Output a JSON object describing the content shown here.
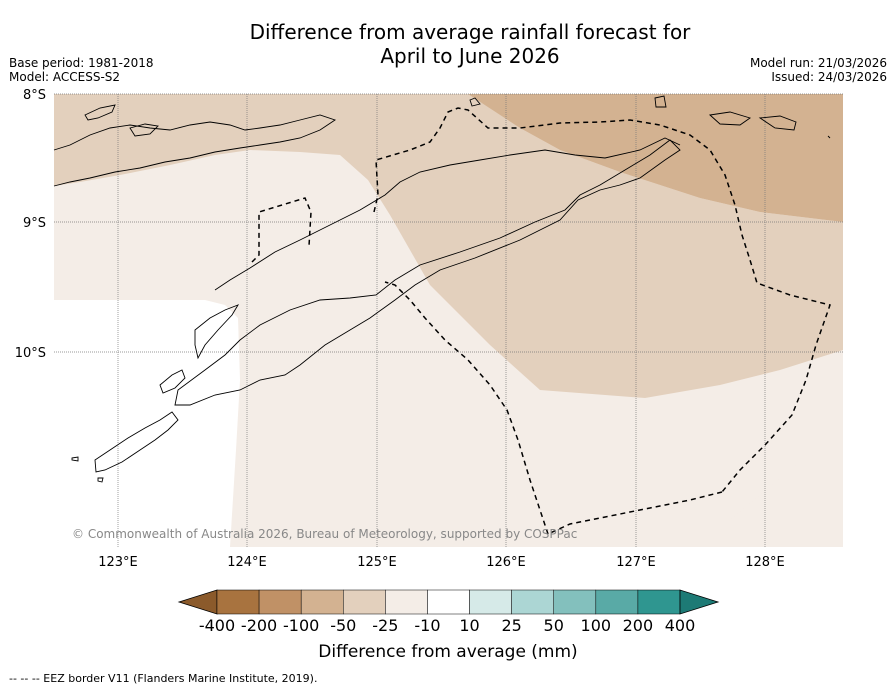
{
  "title": {
    "line1": "Difference from average rainfall forecast for",
    "line2": "April to June 2026"
  },
  "meta_left": {
    "base_period": "Base period: 1981-2018",
    "model": "Model: ACCESS-S2"
  },
  "meta_right": {
    "model_run": "Model run: 21/03/2026",
    "issued": "Issued: 24/03/2026"
  },
  "map": {
    "latitude_labels": [
      "8°S",
      "9°S",
      "10°S"
    ],
    "longitude_labels": [
      "123°E",
      "124°E",
      "125°E",
      "126°E",
      "127°E",
      "128°E"
    ],
    "copyright": "© Commonwealth of Australia 2026, Bureau of Meteorology, supported by COSPPac"
  },
  "colorbar": {
    "tick_labels": [
      "-400",
      "-200",
      "-100",
      "-50",
      "-25",
      "-10",
      "10",
      "25",
      "50",
      "100",
      "200",
      "400"
    ],
    "label": "Difference from average (mm)",
    "colors": [
      "#8b5a2b",
      "#a8733f",
      "#c09166",
      "#d3b291",
      "#e3d0bd",
      "#f4ede7",
      "#ffffff",
      "#d6eae8",
      "#acd6d4",
      "#83c0bd",
      "#59aaa6",
      "#2f9690",
      "#1d7a75"
    ]
  },
  "footer": {
    "legend": "-- -- -- EEZ border V11 (Flanders Marine Institute, 2019)."
  }
}
